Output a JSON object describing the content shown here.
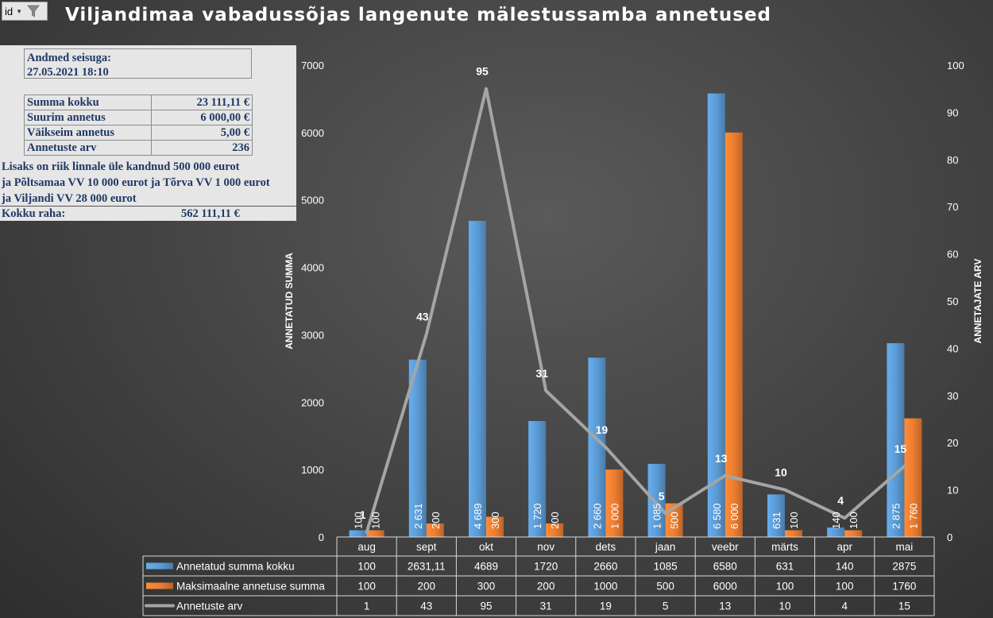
{
  "header": {
    "filter_label": "id",
    "title": "Viljandimaa vabadussõjas langenute mälestussamba annetused"
  },
  "info": {
    "asof_label": "Andmed seisuga:",
    "asof_value": "27.05.2021 18:10",
    "stats": [
      {
        "label": "Summa kokku",
        "value": "23 111,11 €"
      },
      {
        "label": "Suurim annetus",
        "value": "6 000,00 €"
      },
      {
        "label": "Väikseim annetus",
        "value": "5,00 €"
      },
      {
        "label": "Annetuste arv",
        "value": "236"
      }
    ],
    "note_lines": [
      "Lisaks on riik linnale üle kandnud 500 000 eurot",
      "ja Põltsamaa VV 10 000 eurot ja Tõrva VV 1 000 eurot",
      "ja Viljandi VV 28 000 eurot"
    ],
    "total_label": "Kokku raha:",
    "total_value": "562 111,11 €"
  },
  "colors": {
    "series1": "#5b9bd5",
    "series2": "#ed7d31",
    "series3": "#a5a5a5"
  },
  "chart_data": {
    "type": "bar",
    "categories": [
      "aug",
      "sept",
      "okt",
      "nov",
      "dets",
      "jaan",
      "veebr",
      "märts",
      "apr",
      "mai"
    ],
    "ylabel": "ANNETATUD SUMMA",
    "y2label": "ANNETAJATE ARV",
    "ylim": [
      0,
      7000
    ],
    "y2lim": [
      0,
      100
    ],
    "yticks": [
      "0",
      "1000",
      "2000",
      "3000",
      "4000",
      "5000",
      "6000",
      "7000"
    ],
    "y2ticks": [
      "0",
      "10",
      "20",
      "30",
      "40",
      "50",
      "60",
      "70",
      "80",
      "90",
      "100"
    ],
    "grid": false,
    "legend": "data-table",
    "series": [
      {
        "name": "Annetatud summa kokku",
        "type": "bar",
        "axis": "left",
        "values": [
          100,
          2631.11,
          4689,
          1720,
          2660,
          1085,
          6580,
          631,
          140,
          2875
        ],
        "data_labels": [
          "100",
          "2 631",
          "4 689",
          "1 720",
          "2 660",
          "1 085",
          "6 580",
          "631",
          "140",
          "2 875"
        ],
        "table_values": [
          "100",
          "2631,11",
          "4689",
          "1720",
          "2660",
          "1085",
          "6580",
          "631",
          "140",
          "2875"
        ]
      },
      {
        "name": "Maksimaalne annetuse summa",
        "type": "bar",
        "axis": "left",
        "values": [
          100,
          200,
          300,
          200,
          1000,
          500,
          6000,
          100,
          100,
          1760
        ],
        "data_labels": [
          "100",
          "200",
          "300",
          "200",
          "1 000",
          "500",
          "6 000",
          "100",
          "100",
          "1 760"
        ],
        "table_values": [
          "100",
          "200",
          "300",
          "200",
          "1000",
          "500",
          "6000",
          "100",
          "100",
          "1760"
        ]
      },
      {
        "name": "Annetuste arv",
        "type": "line",
        "axis": "right",
        "values": [
          1,
          43,
          95,
          31,
          19,
          5,
          13,
          10,
          4,
          15
        ],
        "data_labels": [
          "1",
          "43",
          "95",
          "31",
          "19",
          "5",
          "13",
          "10",
          "4",
          "15"
        ],
        "table_values": [
          "1",
          "43",
          "95",
          "31",
          "19",
          "5",
          "13",
          "10",
          "4",
          "15"
        ]
      }
    ]
  }
}
